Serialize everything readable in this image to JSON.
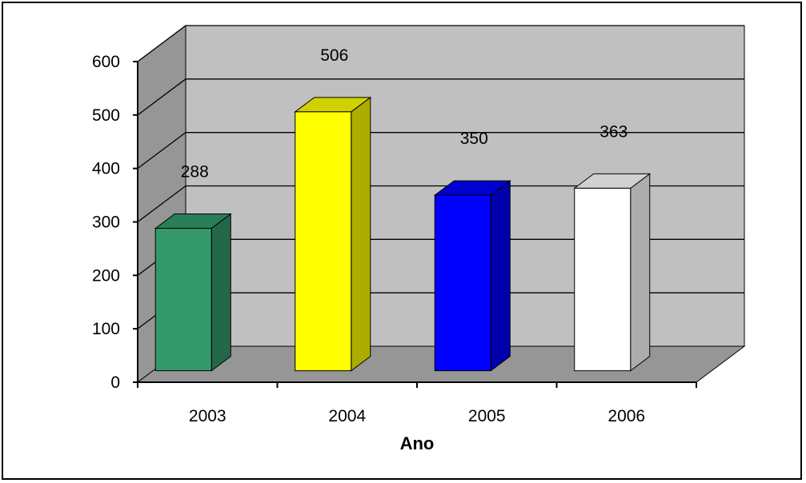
{
  "chart_data": {
    "type": "bar",
    "categories": [
      "2003",
      "2004",
      "2005",
      "2006"
    ],
    "values": [
      288,
      506,
      350,
      363
    ],
    "bar_colors": [
      "#33996b",
      "#ffff00",
      "#0000ff",
      "#ffffff"
    ],
    "data_labels": [
      "288",
      "506",
      "350",
      "363"
    ],
    "yticks": [
      0,
      100,
      200,
      300,
      400,
      500,
      600
    ],
    "ylim": [
      0,
      600
    ],
    "xlabel": "Ano",
    "ylabel": "",
    "title": "",
    "grid": true,
    "legend": "none",
    "style": "3d",
    "wall_color": "#c0c0c0",
    "floor_color": "#969696"
  }
}
